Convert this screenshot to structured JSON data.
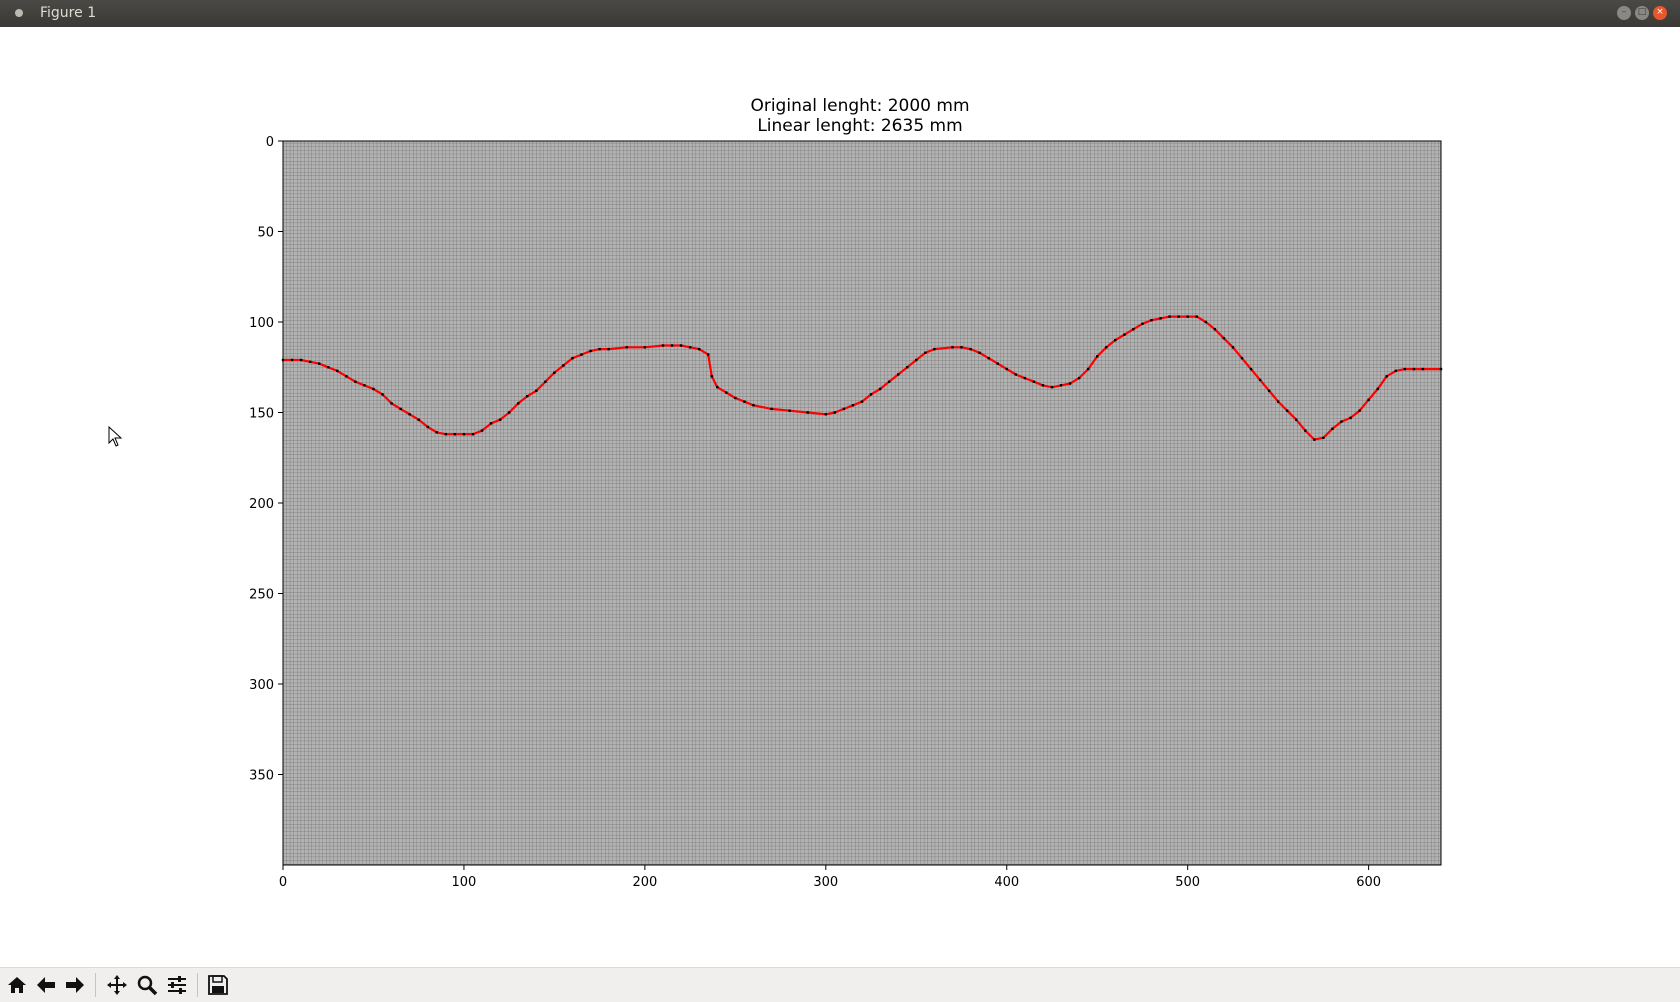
{
  "window": {
    "title": "Figure 1"
  },
  "toolbar": {
    "buttons": [
      {
        "name": "home-icon"
      },
      {
        "name": "back-arrow-icon"
      },
      {
        "name": "forward-arrow-icon"
      },
      {
        "name": "pan-icon"
      },
      {
        "name": "zoom-icon"
      },
      {
        "name": "configure-subplots-icon"
      },
      {
        "name": "save-icon"
      }
    ]
  },
  "chart_data": {
    "type": "line",
    "title": "Original lenght: 2000 mm\nLinear lenght: 2635 mm",
    "title_lines": [
      "Original lenght: 2000 mm",
      "Linear lenght: 2635 mm"
    ],
    "xlabel": "",
    "ylabel": "",
    "xlim": [
      0,
      640
    ],
    "ylim": [
      400,
      0
    ],
    "y_inverted": true,
    "xticks": [
      0,
      100,
      200,
      300,
      400,
      500,
      600
    ],
    "yticks": [
      0,
      50,
      100,
      150,
      200,
      250,
      300,
      350
    ],
    "grid": true,
    "line_color": "#ff0000",
    "marker_color": "#000000",
    "background": "#aaaaaa",
    "series": [
      {
        "x": [
          0,
          5,
          10,
          15,
          20,
          25,
          30,
          35,
          40,
          45,
          50,
          55,
          60,
          65,
          70,
          75,
          80,
          85,
          90,
          95,
          100,
          105,
          110,
          115,
          120,
          125,
          130,
          135,
          140,
          145,
          150,
          155,
          160,
          165,
          170,
          175,
          180,
          190,
          200,
          210,
          215,
          220,
          225,
          230,
          235,
          237,
          240,
          245,
          250,
          255,
          260,
          270,
          280,
          290,
          300,
          305,
          310,
          315,
          320,
          325,
          330,
          335,
          340,
          345,
          350,
          355,
          360,
          370,
          375,
          380,
          385,
          390,
          395,
          400,
          405,
          410,
          415,
          420,
          425,
          430,
          435,
          440,
          445,
          450,
          455,
          460,
          465,
          470,
          475,
          480,
          485,
          490,
          495,
          500,
          505,
          510,
          515,
          520,
          525,
          530,
          535,
          540,
          545,
          550,
          555,
          560,
          565,
          570,
          575,
          580,
          585,
          590,
          595,
          600,
          605,
          610,
          615,
          620,
          625,
          630,
          640
        ],
        "y": [
          121,
          121,
          121,
          122,
          123,
          125,
          127,
          130,
          133,
          135,
          137,
          140,
          145,
          148,
          151,
          154,
          158,
          161,
          162,
          162,
          162,
          162,
          160,
          156,
          154,
          150,
          145,
          141,
          138,
          133,
          128,
          124,
          120,
          118,
          116,
          115,
          115,
          114,
          114,
          113,
          113,
          113,
          114,
          115,
          118,
          130,
          136,
          139,
          142,
          144,
          146,
          148,
          149,
          150,
          151,
          150,
          148,
          146,
          144,
          140,
          137,
          133,
          129,
          125,
          121,
          117,
          115,
          114,
          114,
          115,
          117,
          120,
          123,
          126,
          129,
          131,
          133,
          135,
          136,
          135,
          134,
          131,
          126,
          119,
          114,
          110,
          107,
          104,
          101,
          99,
          98,
          97,
          97,
          97,
          97,
          100,
          104,
          109,
          114,
          120,
          126,
          132,
          138,
          144,
          149,
          154,
          160,
          165,
          164,
          159,
          155,
          153,
          149,
          143,
          137,
          130,
          127,
          126,
          126,
          126,
          126
        ]
      }
    ]
  }
}
